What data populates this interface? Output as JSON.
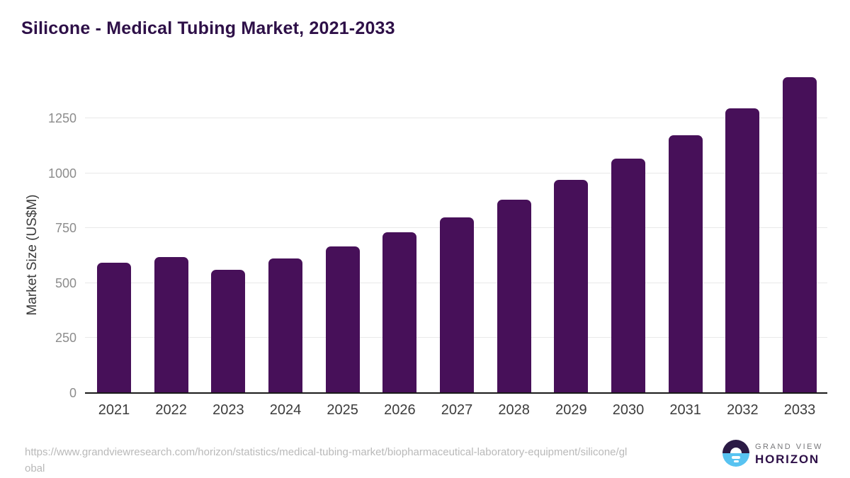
{
  "title": "Silicone - Medical Tubing Market, 2021-2033",
  "chart_data": {
    "type": "bar",
    "title": "Silicone - Medical Tubing Market, 2021-2033",
    "categories": [
      "2021",
      "2022",
      "2023",
      "2024",
      "2025",
      "2026",
      "2027",
      "2028",
      "2029",
      "2030",
      "2031",
      "2032",
      "2033"
    ],
    "values": [
      589,
      614,
      557,
      609,
      664,
      729,
      797,
      877,
      965,
      1062,
      1170,
      1291,
      1433
    ],
    "xlabel": "",
    "ylabel": "Market Size (US$M)",
    "ylim": [
      0,
      1450
    ],
    "yticks": [
      0,
      250,
      500,
      750,
      1000,
      1250
    ],
    "grid": "horizontal",
    "legend": "none",
    "bar_color": "#471059"
  },
  "colors": {
    "bar": "#471059",
    "title_text": "#2E1048",
    "gridline": "#E9E9E9",
    "axis_line": "#1A1A1A",
    "y_tick_text": "#8C8C8C",
    "x_tick_text": "#3C3C3C",
    "url_text": "#B9B9B9",
    "logo_navy": "#2B1A45",
    "logo_blue": "#58C3F1"
  },
  "footer": {
    "source_url_lines": [
      "https://www.grandviewresearch.com/horizon/statistics/medical-tubing-market/biopharmaceutical-laboratory-equipment/silicone/gl",
      "obal"
    ],
    "logo": {
      "brand_line1": "GRAND VIEW",
      "brand_line2": "HORIZON",
      "icon": "horizon-sunrise-icon"
    }
  }
}
